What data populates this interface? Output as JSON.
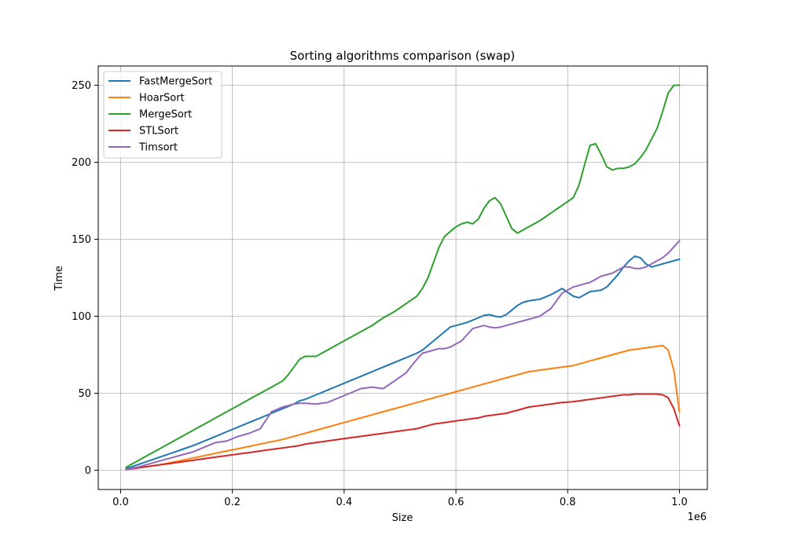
{
  "chart_data": {
    "type": "line",
    "title": "Sorting algorithms comparison (swap)",
    "xlabel": "Size",
    "ylabel": "Time",
    "x_offset_label": "1e6",
    "xlim": [
      -0.04,
      1.05
    ],
    "ylim": [
      -12.5,
      262.5
    ],
    "xticks": [
      0.0,
      0.2,
      0.4,
      0.6,
      0.8,
      1.0
    ],
    "xtick_labels": [
      "0.0",
      "0.2",
      "0.4",
      "0.6",
      "0.8",
      "1.0"
    ],
    "yticks": [
      0,
      50,
      100,
      150,
      200,
      250
    ],
    "ytick_labels": [
      "0",
      "50",
      "100",
      "150",
      "200",
      "250"
    ],
    "grid": true,
    "legend_position": "top-left",
    "x": [
      0.01,
      0.03,
      0.05,
      0.07,
      0.09,
      0.11,
      0.13,
      0.15,
      0.17,
      0.19,
      0.21,
      0.23,
      0.25,
      0.27,
      0.29,
      0.3,
      0.31,
      0.32,
      0.33,
      0.35,
      0.37,
      0.39,
      0.41,
      0.43,
      0.45,
      0.47,
      0.49,
      0.51,
      0.53,
      0.54,
      0.55,
      0.56,
      0.57,
      0.58,
      0.59,
      0.6,
      0.61,
      0.62,
      0.63,
      0.64,
      0.65,
      0.66,
      0.67,
      0.68,
      0.69,
      0.7,
      0.71,
      0.72,
      0.73,
      0.75,
      0.77,
      0.79,
      0.81,
      0.82,
      0.83,
      0.84,
      0.85,
      0.86,
      0.87,
      0.88,
      0.89,
      0.9,
      0.91,
      0.92,
      0.93,
      0.94,
      0.95,
      0.96,
      0.97,
      0.98,
      0.99,
      1.0
    ],
    "series": [
      {
        "name": "FastMergeSort",
        "color": "#1f77b4",
        "values": [
          1,
          3.5,
          6,
          8.5,
          11,
          13.5,
          16,
          19,
          22,
          25,
          28,
          31,
          34,
          37,
          40,
          41.5,
          43,
          45,
          46,
          49,
          52,
          55,
          58,
          61,
          64,
          67,
          70,
          73,
          76,
          78,
          81,
          84,
          87,
          90,
          93,
          94,
          95,
          96,
          97.5,
          99,
          100.5,
          101,
          100,
          99.5,
          101,
          104,
          107,
          109,
          110,
          111,
          114,
          118,
          113,
          112,
          114,
          116,
          116.5,
          117,
          119,
          123,
          127,
          132,
          136,
          139,
          138,
          134,
          132,
          133,
          134,
          135,
          136,
          137
        ]
      },
      {
        "name": "HoarSort",
        "color": "#ff7f0e",
        "values": [
          0.5,
          1.5,
          2.5,
          3.5,
          5,
          6.5,
          8,
          9.5,
          11,
          12.5,
          14,
          15.5,
          17,
          18.5,
          20,
          21,
          22,
          23,
          24,
          26,
          28,
          30,
          32,
          34,
          36,
          38,
          40,
          42,
          44,
          45,
          46,
          47,
          48,
          49,
          50,
          51,
          52,
          53,
          54,
          55,
          56,
          57,
          58,
          59,
          60,
          61,
          62,
          63,
          64,
          65,
          66,
          67,
          68,
          69,
          70,
          71,
          72,
          73,
          74,
          75,
          76,
          77,
          78,
          78.5,
          79,
          79.5,
          80,
          80.5,
          81,
          78,
          65,
          38
        ]
      },
      {
        "name": "MergeSort",
        "color": "#2ca02c",
        "values": [
          2,
          6,
          10,
          14,
          18,
          22,
          26,
          30,
          34,
          38,
          42,
          46,
          50,
          54,
          58,
          62,
          67,
          72,
          74,
          74,
          78,
          82,
          86,
          90,
          94,
          99,
          103,
          108,
          113,
          118,
          125,
          135,
          145,
          152,
          155,
          158,
          160,
          161,
          160,
          163,
          170,
          175,
          177,
          173,
          165,
          157,
          154,
          156,
          158,
          162,
          167,
          172,
          177,
          185,
          198,
          211,
          212,
          205,
          197,
          195,
          196,
          196,
          197,
          199,
          203,
          208,
          215,
          222,
          233,
          245,
          250,
          250
        ]
      },
      {
        "name": "STLSort",
        "color": "#d62728",
        "values": [
          0.5,
          1.5,
          2.5,
          3.5,
          4.5,
          5.5,
          6.5,
          7.5,
          8.5,
          9.5,
          10.5,
          11.5,
          12.5,
          13.5,
          14.5,
          15,
          15.5,
          16,
          17,
          18,
          19,
          20,
          21,
          22,
          23,
          24,
          25,
          26,
          27,
          28,
          29,
          30,
          30.5,
          31,
          31.5,
          32,
          32.5,
          33,
          33.5,
          34,
          35,
          35.5,
          36,
          36.5,
          37,
          38,
          39,
          40,
          41,
          42,
          43,
          44,
          44.5,
          45,
          45.5,
          46,
          46.5,
          47,
          47.5,
          48,
          48.5,
          49,
          49,
          49.5,
          49.5,
          49.5,
          49.5,
          49.5,
          49,
          47,
          40,
          29
        ]
      },
      {
        "name": "Timsort",
        "color": "#9467bd",
        "values": [
          0.5,
          2,
          4,
          6,
          8,
          10,
          12,
          15,
          18,
          19,
          22,
          24,
          27,
          38,
          41,
          42,
          43,
          43.5,
          43.5,
          43,
          44,
          47,
          50,
          53,
          54,
          53,
          58,
          63,
          72,
          76,
          77,
          78,
          79,
          79,
          80,
          82,
          84,
          88,
          92,
          93,
          94,
          93,
          92.5,
          93,
          94,
          95,
          96,
          97,
          98,
          100,
          105,
          115,
          119,
          120,
          121,
          122,
          124,
          126,
          127,
          128,
          130,
          132,
          132,
          131,
          131,
          132,
          134,
          136,
          138,
          141,
          145,
          149
        ]
      }
    ]
  }
}
